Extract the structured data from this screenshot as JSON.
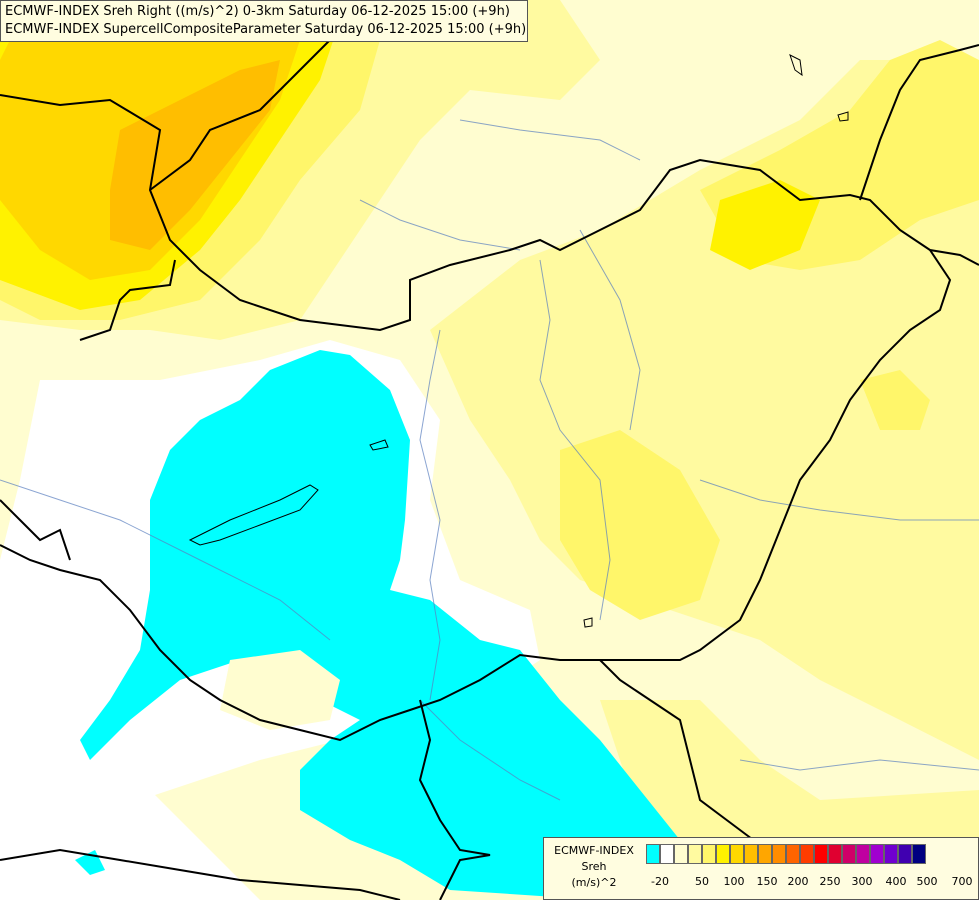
{
  "title": {
    "line1": "ECMWF-INDEX Sreh Right ((m/s)^2) 0-3km Saturday 06-12-2025 15:00 (+9h)",
    "line2": "ECMWF-INDEX SupercellCompositeParameter Saturday 06-12-2025 15:00 (+9h)"
  },
  "legend": {
    "line1": "ECMWF-INDEX",
    "line2": "Sreh",
    "line3": "(m/s)^2",
    "colors": [
      "#00ffff",
      "#ffffff",
      "#fffdd0",
      "#fffaa0",
      "#fff66a",
      "#fff200",
      "#ffd800",
      "#ffbe00",
      "#ffa600",
      "#ff8c00",
      "#ff6400",
      "#ff3c00",
      "#ff0000",
      "#e00030",
      "#d00068",
      "#c000a0",
      "#a000d0",
      "#7000d0",
      "#4000b0",
      "#000080"
    ],
    "ticks": [
      "-20",
      "50",
      "100",
      "150",
      "200",
      "250",
      "300",
      "400",
      "500",
      "700"
    ]
  },
  "colors": {
    "cyan": "#00ffff",
    "pale": "#ffffd0",
    "light_yellow": "#fffaa0",
    "yellow": "#fff66a",
    "bright_yellow": "#fff200",
    "gold": "#ffd800",
    "orange": "#ffbe00"
  }
}
